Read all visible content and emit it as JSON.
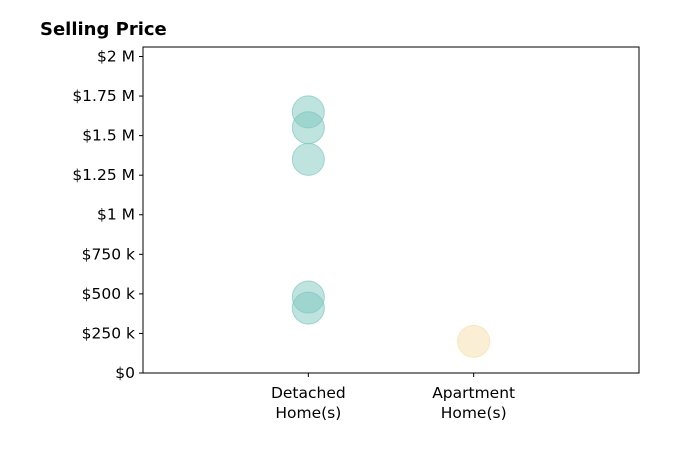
{
  "chart_data": {
    "type": "scatter",
    "title": "Selling Price",
    "xlabel": "",
    "ylabel": "",
    "categories": [
      [
        "Detached",
        "Home(s)"
      ],
      [
        "Apartment",
        "Home(s)"
      ]
    ],
    "y_ticks": [
      {
        "value": 0,
        "label": "$0"
      },
      {
        "value": 250000,
        "label": "$250 k"
      },
      {
        "value": 500000,
        "label": "$500 k"
      },
      {
        "value": 750000,
        "label": "$750 k"
      },
      {
        "value": 1000000,
        "label": "$1 M"
      },
      {
        "value": 1250000,
        "label": "$1.25 M"
      },
      {
        "value": 1500000,
        "label": "$1.5 M"
      },
      {
        "value": 1750000,
        "label": "$1.75 M"
      },
      {
        "value": 2000000,
        "label": "$2 M"
      }
    ],
    "ylim": [
      0,
      2060000
    ],
    "xlim": [
      0,
      3
    ],
    "grid": false,
    "series": [
      {
        "category_index": 0,
        "color": "#7fc8c0",
        "values": [
          1650000,
          1550000,
          1350000,
          480000,
          410000
        ]
      },
      {
        "category_index": 1,
        "color": "#f6dfaa",
        "values": [
          200000
        ]
      }
    ]
  }
}
